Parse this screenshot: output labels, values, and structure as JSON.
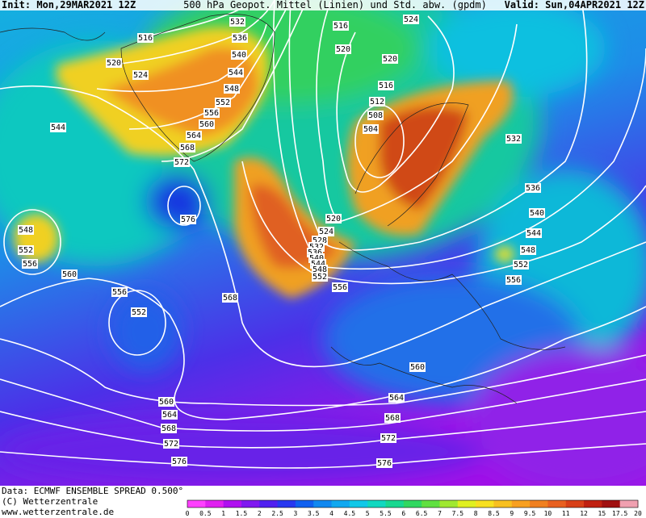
{
  "header": {
    "init": "Init: Mon,29MAR2021 12Z",
    "title": "500 hPa Geopot. Mittel (Linien) und Std. abw. (gpdm)",
    "valid": "Valid: Sun,04APR2021 12Z"
  },
  "contour_labels": [
    516,
    520,
    524,
    532,
    536,
    540,
    544,
    548,
    552,
    556,
    560,
    564,
    568,
    572,
    544,
    576,
    548,
    552,
    556,
    560,
    556,
    552,
    568,
    516,
    524,
    520,
    520,
    516,
    512,
    508,
    504,
    532,
    536,
    540,
    544,
    548,
    552,
    556,
    520,
    524,
    528,
    532,
    536,
    540,
    544,
    548,
    552,
    556,
    560,
    564,
    568,
    572,
    576,
    560,
    564,
    568,
    572,
    576
  ],
  "footer": {
    "data": "Data: ECMWF ENSEMBLE SPREAD 0.500°",
    "copyright": "(C) Wetterzentrale",
    "url": "www.wetterzentrale.de"
  },
  "colorbar": [
    0,
    0.5,
    1,
    1.5,
    2,
    2.5,
    3,
    3.5,
    4,
    4.5,
    5,
    5.5,
    6,
    6.5,
    7,
    7.5,
    8,
    8.5,
    9,
    9.5,
    10,
    11,
    12,
    15,
    17.5,
    20
  ]
}
